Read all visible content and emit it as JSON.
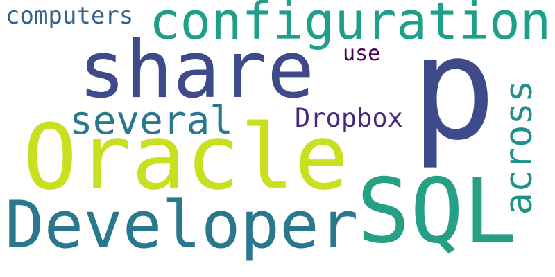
{
  "words": {
    "computers": {
      "text": "computers",
      "color": "#33638d"
    },
    "configuration": {
      "text": "configuration",
      "color": "#1f9e89"
    },
    "share": {
      "text": "share",
      "color": "#3e4a89"
    },
    "use": {
      "text": "use",
      "color": "#440154"
    },
    "p": {
      "text": "p",
      "color": "#3e4a89"
    },
    "several": {
      "text": "several",
      "color": "#2a788e"
    },
    "dropbox": {
      "text": "Dropbox",
      "color": "#482878"
    },
    "across": {
      "text": "across",
      "color": "#21918c"
    },
    "oracle": {
      "text": "Oracle",
      "color": "#c8e020"
    },
    "sql": {
      "text": "SQL",
      "color": "#25a085"
    },
    "developer": {
      "text": "Developer",
      "color": "#2a788e"
    }
  }
}
